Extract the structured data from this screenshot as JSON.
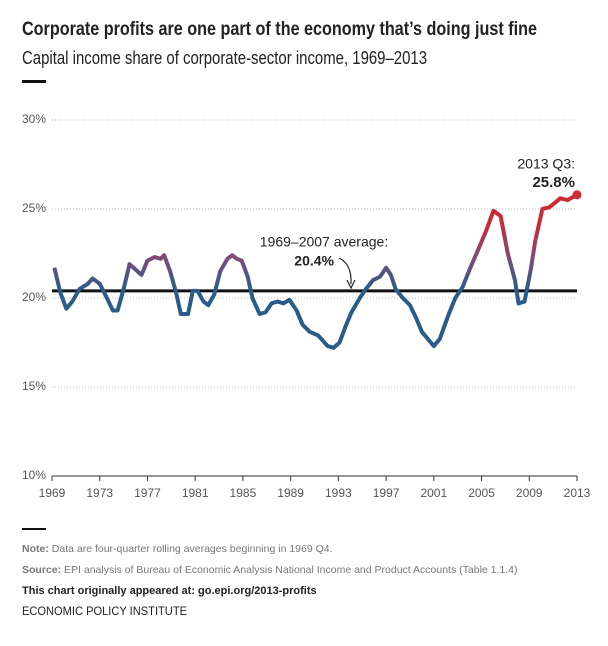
{
  "chart_data": {
    "type": "line",
    "title": "Corporate profits are one part of the economy that’s doing just fine",
    "subtitle": "Capital income share of corporate-sector income, 1969–2013",
    "x": [
      1969.2,
      1969.7,
      1970.2,
      1970.7,
      1971.3,
      1972.0,
      1972.4,
      1973.0,
      1973.6,
      1974.1,
      1974.5,
      1975.0,
      1975.5,
      1976.0,
      1976.5,
      1977.0,
      1977.6,
      1978.1,
      1978.4,
      1978.9,
      1979.4,
      1979.8,
      1980.4,
      1980.8,
      1981.2,
      1981.7,
      1982.1,
      1982.6,
      1983.1,
      1983.7,
      1984.1,
      1984.5,
      1984.9,
      1985.4,
      1985.8,
      1986.4,
      1986.9,
      1987.4,
      1987.9,
      1988.4,
      1988.9,
      1989.5,
      1990.0,
      1990.6,
      1991.3,
      1991.7,
      1992.1,
      1992.6,
      1993.1,
      1993.6,
      1994.1,
      1994.8,
      1995.3,
      1995.9,
      1996.5,
      1997.0,
      1997.4,
      1997.8,
      1998.4,
      1999.0,
      1999.5,
      2000.0,
      2000.5,
      2001.0,
      2001.5,
      2002.2,
      2002.8,
      2003.4,
      2004.0,
      2004.9,
      2005.4,
      2006.0,
      2006.6,
      2007.2,
      2007.8,
      2008.1,
      2008.6,
      2009.1,
      2009.5,
      2010.1,
      2010.7,
      2011.6,
      2012.2,
      2013.0
    ],
    "series": [
      {
        "name": "Capital income share",
        "values": [
          21.7,
          20.3,
          19.4,
          19.8,
          20.5,
          20.8,
          21.1,
          20.8,
          20.0,
          19.3,
          19.3,
          20.5,
          21.9,
          21.6,
          21.3,
          22.1,
          22.3,
          22.2,
          22.4,
          21.5,
          20.3,
          19.1,
          19.1,
          20.4,
          20.4,
          19.8,
          19.6,
          20.2,
          21.5,
          22.2,
          22.4,
          22.2,
          22.1,
          21.2,
          20.0,
          19.1,
          19.2,
          19.7,
          19.8,
          19.7,
          19.9,
          19.3,
          18.5,
          18.1,
          17.9,
          17.6,
          17.3,
          17.2,
          17.5,
          18.4,
          19.2,
          20.0,
          20.5,
          21.0,
          21.2,
          21.7,
          21.3,
          20.5,
          20.0,
          19.6,
          18.9,
          18.1,
          17.7,
          17.3,
          17.7,
          19.0,
          20.0,
          20.6,
          21.6,
          23.0,
          23.8,
          24.9,
          24.6,
          22.5,
          21.0,
          19.7,
          19.8,
          21.5,
          23.2,
          25.0,
          25.1,
          25.6,
          25.5,
          25.8
        ]
      }
    ],
    "color_scale": [
      "#2a5b8b",
      "#7a4c7c",
      "#cb2a37"
    ],
    "average": 20.4,
    "average_label": "1969–2007 average:",
    "average_value_label": "20.4%",
    "end_label": "2013 Q3:",
    "end_value_label": "25.8%",
    "xlim": [
      1969,
      2013
    ],
    "xticks": [
      1969,
      1973,
      1977,
      1981,
      1985,
      1989,
      1993,
      1997,
      2001,
      2005,
      2009,
      2013
    ],
    "ylim": [
      10,
      30
    ],
    "yticks": [
      {
        "value": 10,
        "label": "10%"
      },
      {
        "value": 15,
        "label": "15%"
      },
      {
        "value": 20,
        "label": "20%"
      },
      {
        "value": 25,
        "label": "25%"
      },
      {
        "value": 30,
        "label": "30%"
      }
    ],
    "grid": true,
    "note_label": "Note:",
    "note": "Data are four-quarter rolling averages beginning in 1969 Q4.",
    "source_label": "Source:",
    "source": "EPI analysis of Bureau of Economic Analysis National Income and Product Accounts (Table 1.1.4)",
    "link": "This chart originally appeared at: go.epi.org/2013-profits",
    "publisher": "ECONOMIC POLICY INSTITUTE"
  }
}
